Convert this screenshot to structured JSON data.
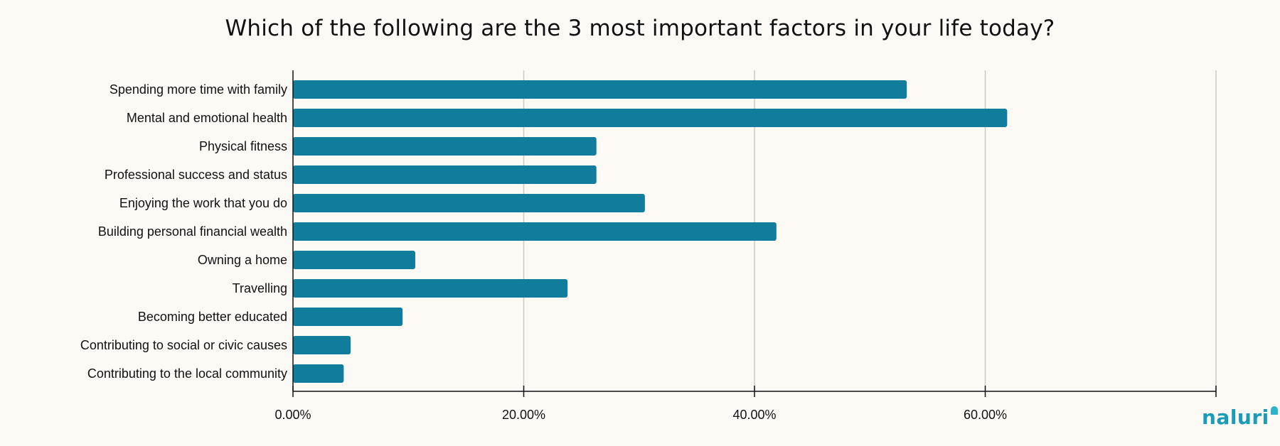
{
  "chart_data": {
    "type": "bar",
    "orientation": "horizontal",
    "title": "Which of the following are the 3 most important factors in your life today?",
    "categories": [
      "Spending more time with family",
      "Mental and emotional health",
      "Physical fitness",
      "Professional success and status",
      "Enjoying the work that you do",
      "Building personal financial wealth",
      "Owning a home",
      "Travelling",
      "Becoming better educated",
      "Contributing to social or civic causes",
      "Contributing to the local community"
    ],
    "values": [
      53.2,
      61.9,
      26.3,
      26.3,
      30.5,
      41.9,
      10.6,
      23.8,
      9.5,
      5.0,
      4.4
    ],
    "xlim": [
      0,
      80
    ],
    "xticks": [
      0,
      20,
      40,
      60,
      80
    ],
    "xtick_labels": [
      "0.00%",
      "20.00%",
      "40.00%",
      "60.00%",
      ""
    ],
    "grid": "vertical",
    "bar_color": "#127c9c",
    "xlabel": "",
    "ylabel": ""
  },
  "brand": {
    "name": "naluri",
    "color": "#1a9bb8"
  }
}
